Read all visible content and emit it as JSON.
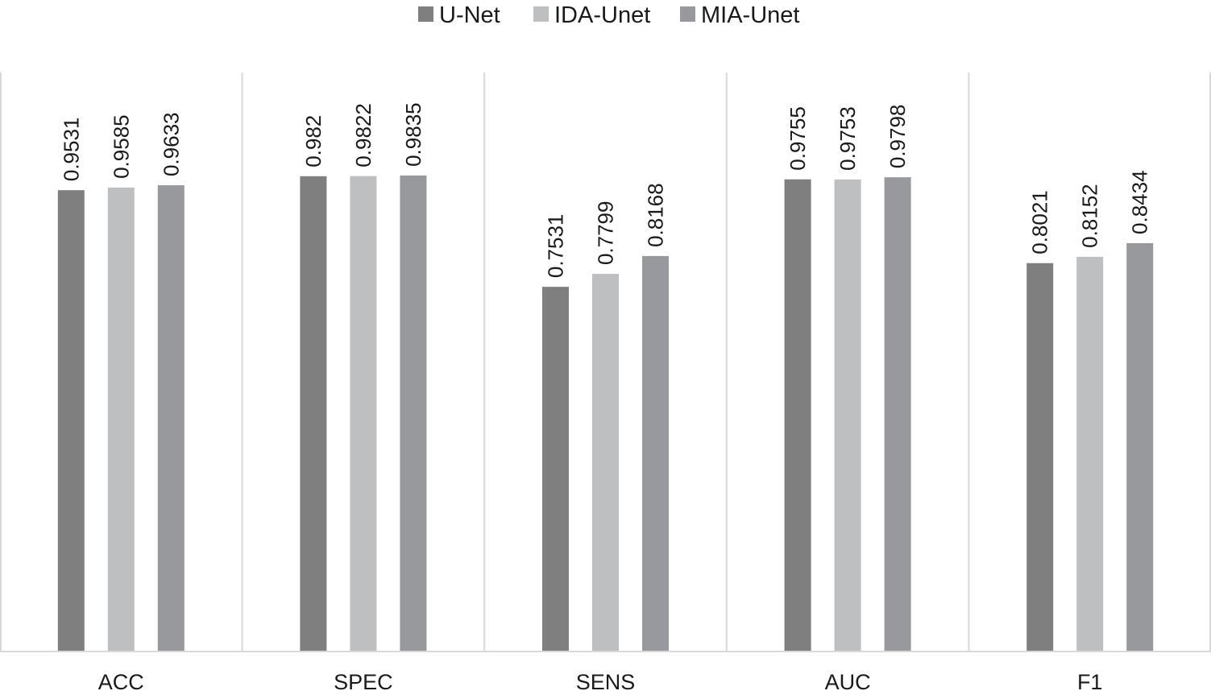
{
  "chart_data": {
    "type": "bar",
    "title": "",
    "xlabel": "",
    "ylabel": "",
    "categories": [
      "ACC",
      "SPEC",
      "SENS",
      "AUC",
      "F1"
    ],
    "series": [
      {
        "name": "U-Net",
        "values": [
          0.9531,
          0.982,
          0.7531,
          0.9755,
          0.8021
        ],
        "labels": [
          "0.9531",
          "0.982",
          "0.7531",
          "0.9755",
          "0.8021"
        ],
        "color": "#7f7f80"
      },
      {
        "name": "IDA-Unet",
        "values": [
          0.9585,
          0.9822,
          0.7799,
          0.9753,
          0.8152
        ],
        "labels": [
          "0.9585",
          "0.9822",
          "0.7799",
          "0.9753",
          "0.8152"
        ],
        "color": "#bebfc1"
      },
      {
        "name": "MIA-Unet",
        "values": [
          0.9633,
          0.9835,
          0.8168,
          0.9798,
          0.8434
        ],
        "labels": [
          "0.9633",
          "0.9835",
          "0.8168",
          "0.9798",
          "0.8434"
        ],
        "color": "#98999c"
      }
    ],
    "ylim": [
      0,
      1.0
    ],
    "grid": false,
    "legend": "top-center"
  }
}
